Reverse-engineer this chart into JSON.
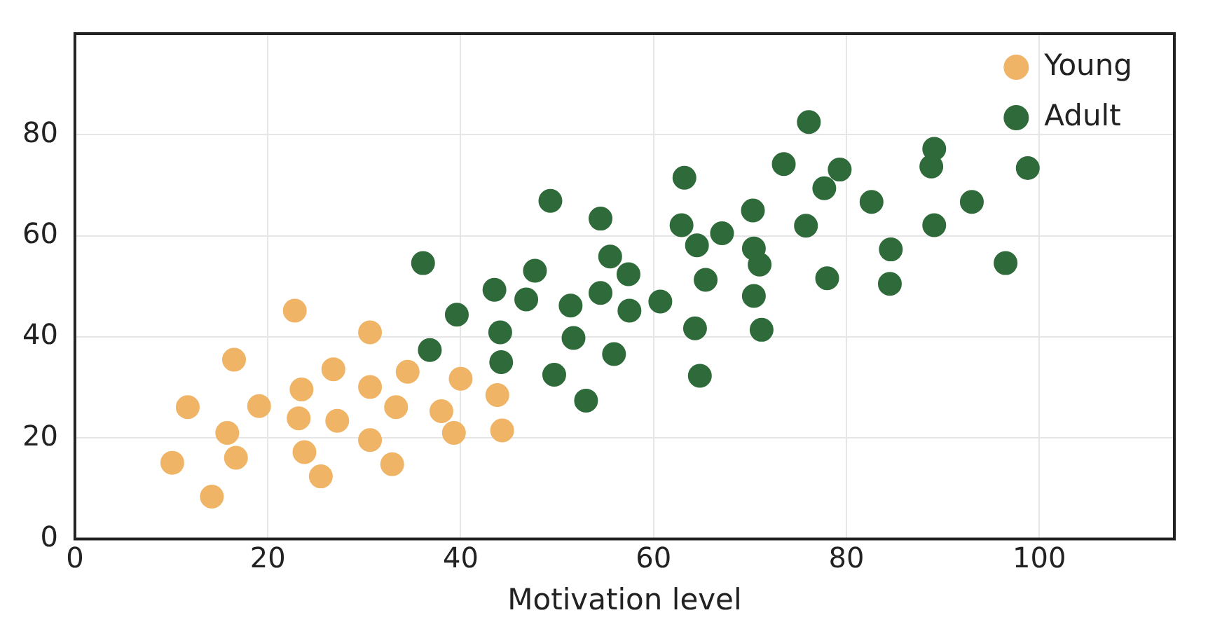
{
  "chart_data": {
    "type": "scatter",
    "xlabel": "Motivation level",
    "xlim": [
      0,
      114
    ],
    "xticks": [
      0,
      20,
      40,
      60,
      80,
      100
    ],
    "ylim": [
      0,
      100
    ],
    "yticks": [
      0,
      20,
      40,
      60,
      80
    ],
    "grid": true,
    "legend": "top right",
    "marker": "circle",
    "series": [
      {
        "name": "Young",
        "color": "#f0b466",
        "x": [
          10.1,
          11.7,
          14.2,
          15.8,
          16.5,
          16.7,
          19.1,
          22.8,
          23.2,
          23.5,
          23.8,
          25.5,
          26.8,
          27.2,
          30.6,
          30.6,
          30.6,
          32.9,
          33.3,
          34.5,
          38,
          40,
          39.3,
          43.8,
          44.3
        ],
        "values": [
          15.1,
          26.1,
          8.4,
          21,
          35.5,
          16.1,
          26.3,
          45.2,
          23.9,
          29.6,
          17.2,
          12.4,
          33.6,
          23.4,
          40.9,
          30.1,
          19.6,
          14.8,
          26.1,
          33.1,
          25.3,
          31.7,
          21,
          28.5,
          21.5
        ]
      },
      {
        "name": "Adult",
        "color": "#2f6b3a",
        "x": [
          36.1,
          36.8,
          39.6,
          43.5,
          44.1,
          44.2,
          46.8,
          47.7,
          49.3,
          49.7,
          51.4,
          51.7,
          53,
          54.5,
          54.5,
          55.5,
          55.9,
          57.4,
          57.5,
          60.7,
          63.2,
          62.9,
          64.5,
          64.3,
          64.8,
          65.4,
          67.1,
          70.3,
          70.4,
          70.4,
          71,
          71.2,
          73.5,
          76.1,
          75.8,
          77.7,
          79.3,
          78,
          82.6,
          84.6,
          84.5,
          88.8,
          89.1,
          89.1,
          93,
          96.5,
          98.8
        ],
        "values": [
          54.6,
          37.4,
          44.4,
          49.3,
          40.9,
          35,
          47.4,
          53.1,
          66.9,
          32.5,
          46.2,
          39.8,
          27.4,
          63.4,
          48.7,
          55.9,
          36.6,
          52.4,
          45.2,
          47,
          71.5,
          62.1,
          58.1,
          41.7,
          32.3,
          51.3,
          60.5,
          65,
          57.5,
          48.1,
          54.3,
          41.4,
          74.2,
          82.5,
          62,
          69.4,
          73.1,
          51.6,
          66.7,
          57.3,
          50.5,
          73.7,
          77.2,
          62.1,
          66.7,
          54.6,
          73.4
        ]
      }
    ]
  }
}
